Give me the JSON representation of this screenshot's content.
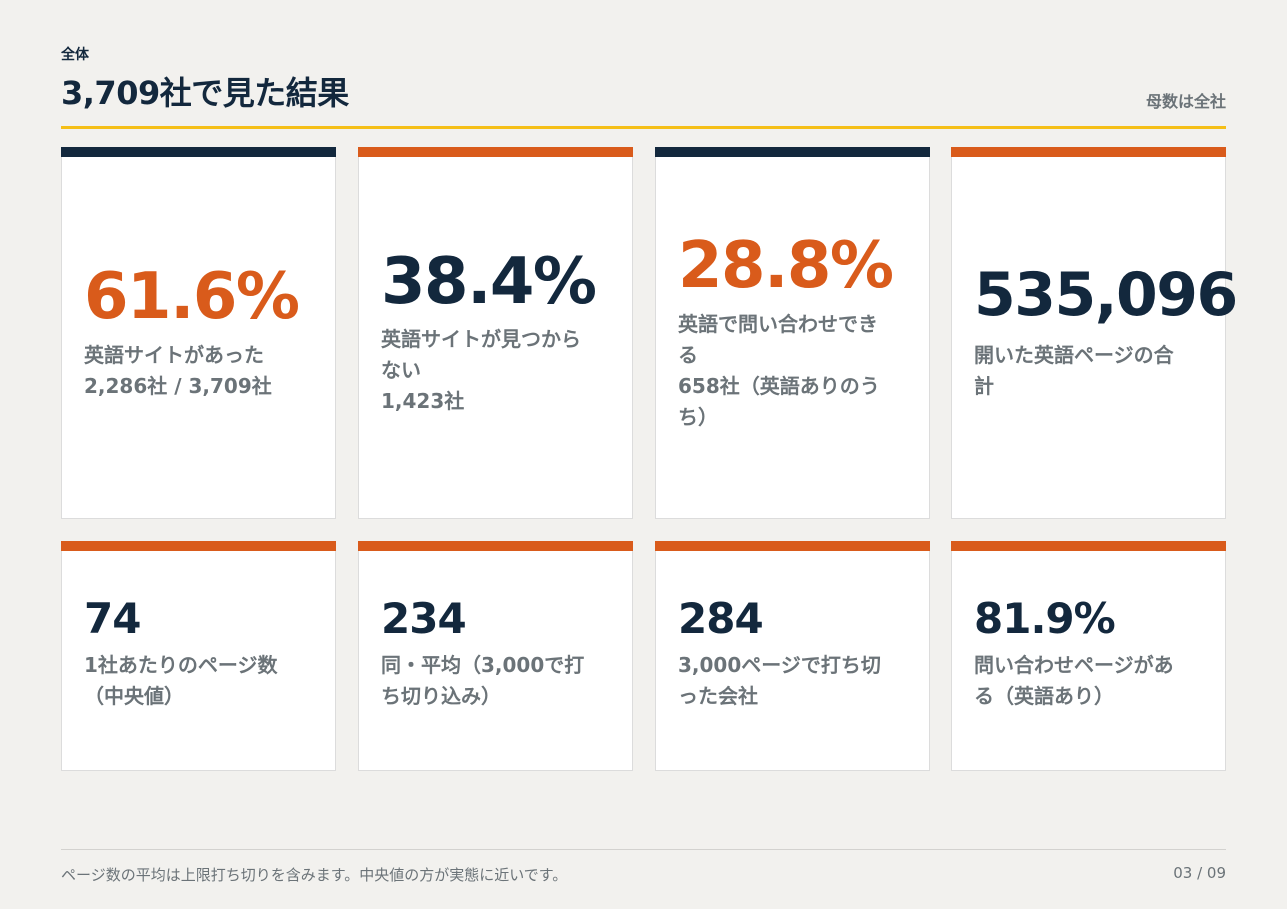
{
  "header": {
    "eyebrow": "全体",
    "title": "3,709社で見た結果",
    "note": "母数は全社"
  },
  "cards_top": [
    {
      "value": "61.6%",
      "label_line1": "英語サイトがあった",
      "label_line2": "2,286社 / 3,709社",
      "value_color": "#d95b1b",
      "bar_color": "#13283d"
    },
    {
      "value": "38.4%",
      "label_line1": "英語サイトが見つから",
      "label_line2": "ない",
      "label_line3": "1,423社",
      "value_color": "#13283d",
      "bar_color": "#d95b1b"
    },
    {
      "value": "28.8%",
      "label_line1": "英語で問い合わせでき",
      "label_line2": "る",
      "label_line3": "658社（英語ありのう",
      "label_line4": "ち）",
      "value_color": "#d95b1b",
      "bar_color": "#13283d"
    },
    {
      "value": "535,096",
      "label_line1": "開いた英語ページの合",
      "label_line2": "計",
      "value_color": "#13283d",
      "bar_color": "#d95b1b"
    }
  ],
  "cards_bottom": [
    {
      "value": "74",
      "label_line1": "1社あたりのページ数",
      "label_line2": "（中央値）"
    },
    {
      "value": "234",
      "label_line1": "同・平均（3,000で打",
      "label_line2": "ち切り込み）"
    },
    {
      "value": "284",
      "label_line1": "3,000ページで打ち切",
      "label_line2": "った会社"
    },
    {
      "value": "81.9%",
      "label_line1": "問い合わせページがあ",
      "label_line2": "る（英語あり）"
    }
  ],
  "footer": {
    "note": "ページ数の平均は上限打ち切りを含みます。中央値の方が実態に近いです。",
    "page": "03 / 09"
  }
}
